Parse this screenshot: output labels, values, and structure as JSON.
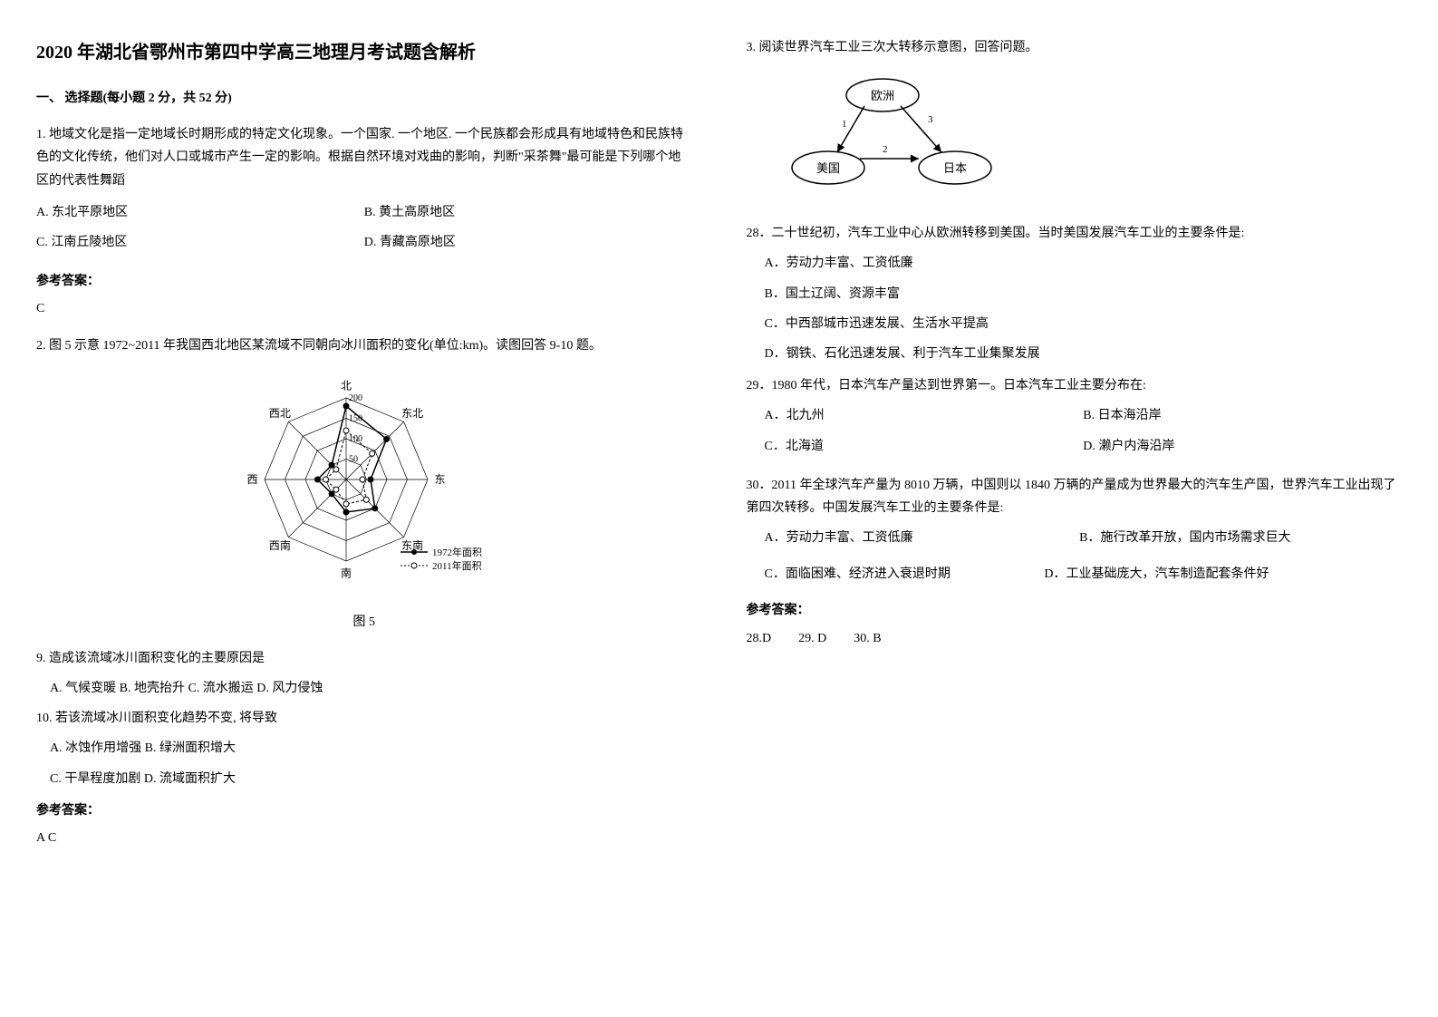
{
  "exam_title": "2020 年湖北省鄂州市第四中学高三地理月考试题含解析",
  "section1_title": "一、 选择题(每小题 2 分，共 52 分)",
  "q1": {
    "text": "1. 地域文化是指一定地域长时期形成的特定文化现象。一个国家. 一个地区. 一个民族都会形成具有地域特色和民族特色的文化传统，他们对人口或城市产生一定的影响。根据自然环境对戏曲的影响，判断\"采茶舞\"最可能是下列哪个地区的代表性舞蹈",
    "optA": "A. 东北平原地区",
    "optB": "B. 黄土高原地区",
    "optC": "C. 江南丘陵地区",
    "optD": "D. 青藏高原地区",
    "answer_label": "参考答案：",
    "answer": "C"
  },
  "q2": {
    "text": "2. 图 5 示意 1972~2011 年我国西北地区某流域不同朝向冰川面积的变化(单位:km)。读图回答 9-10 题。",
    "figure_label": "图 5",
    "radar": {
      "directions": [
        "北",
        "东北",
        "东",
        "东南",
        "南",
        "西南",
        "西",
        "西北"
      ],
      "rings": [
        50,
        100,
        150,
        200
      ],
      "ring_labels": [
        "50",
        "100",
        "150",
        "200"
      ],
      "series1_label": "1972年面积",
      "series2_label": "2011年面积",
      "series1_values": [
        180,
        140,
        60,
        100,
        80,
        50,
        70,
        50
      ],
      "series2_values": [
        120,
        90,
        40,
        70,
        60,
        35,
        50,
        35
      ],
      "series1_color": "#000000",
      "series2_color": "#000000",
      "grid_color": "#000000",
      "bg_color": "#ffffff"
    },
    "sub9": "9. 造成该流域冰川面积变化的主要原因是",
    "sub9_opts": "A. 气候变暖   B. 地壳抬升 C. 流水搬运   D. 风力侵蚀",
    "sub10": "10. 若该流域冰川面积变化趋势不变, 将导致",
    "sub10_optA": "A. 冰蚀作用增强   B. 绿洲面积增大",
    "sub10_optB": "C. 干旱程度加剧   D. 流域面积扩大",
    "answer_label": "参考答案：",
    "answer": "A C"
  },
  "q3": {
    "text": "3. 阅读世界汽车工业三次大转移示意图，回答问题。",
    "diagram": {
      "node1": "欧洲",
      "node2": "美国",
      "node3": "日本",
      "arrow1": "1",
      "arrow2": "2",
      "arrow3": "3",
      "node_bg": "#ffffff",
      "border_color": "#000000"
    },
    "q28": "28．二十世纪初，汽车工业中心从欧洲转移到美国。当时美国发展汽车工业的主要条件是:",
    "q28_optA": "A．劳动力丰富、工资低廉",
    "q28_optB": "B．国土辽阔、资源丰富",
    "q28_optC": "C．中西部城市迅速发展、生活水平提高",
    "q28_optD": "D．钢铁、石化迅速发展、利于汽车工业集聚发展",
    "q29": "29．1980 年代，日本汽车产量达到世界第一。日本汽车工业主要分布在:",
    "q29_optA": "A．北九州",
    "q29_optB": "B. 日本海沿岸",
    "q29_optC": "C．北海道",
    "q29_optD": "D. 濑户内海沿岸",
    "q30": "30．2011 年全球汽车产量为 8010 万辆，中国则以 1840 万辆的产量成为世界最大的汽车生产国，世界汽车工业出现了第四次转移。中国发展汽车工业的主要条件是:",
    "q30_optA": "A．劳动力丰富、工资低廉",
    "q30_optB": "B．施行改革开放，国内市场需求巨大",
    "q30_optC": "C．面临困难、经济进入衰退时期",
    "q30_optD": "D．工业基础庞大，汽车制造配套条件好",
    "answer_label": "参考答案：",
    "answer28": "28.D",
    "answer29": "29. D",
    "answer30": "30. B"
  }
}
